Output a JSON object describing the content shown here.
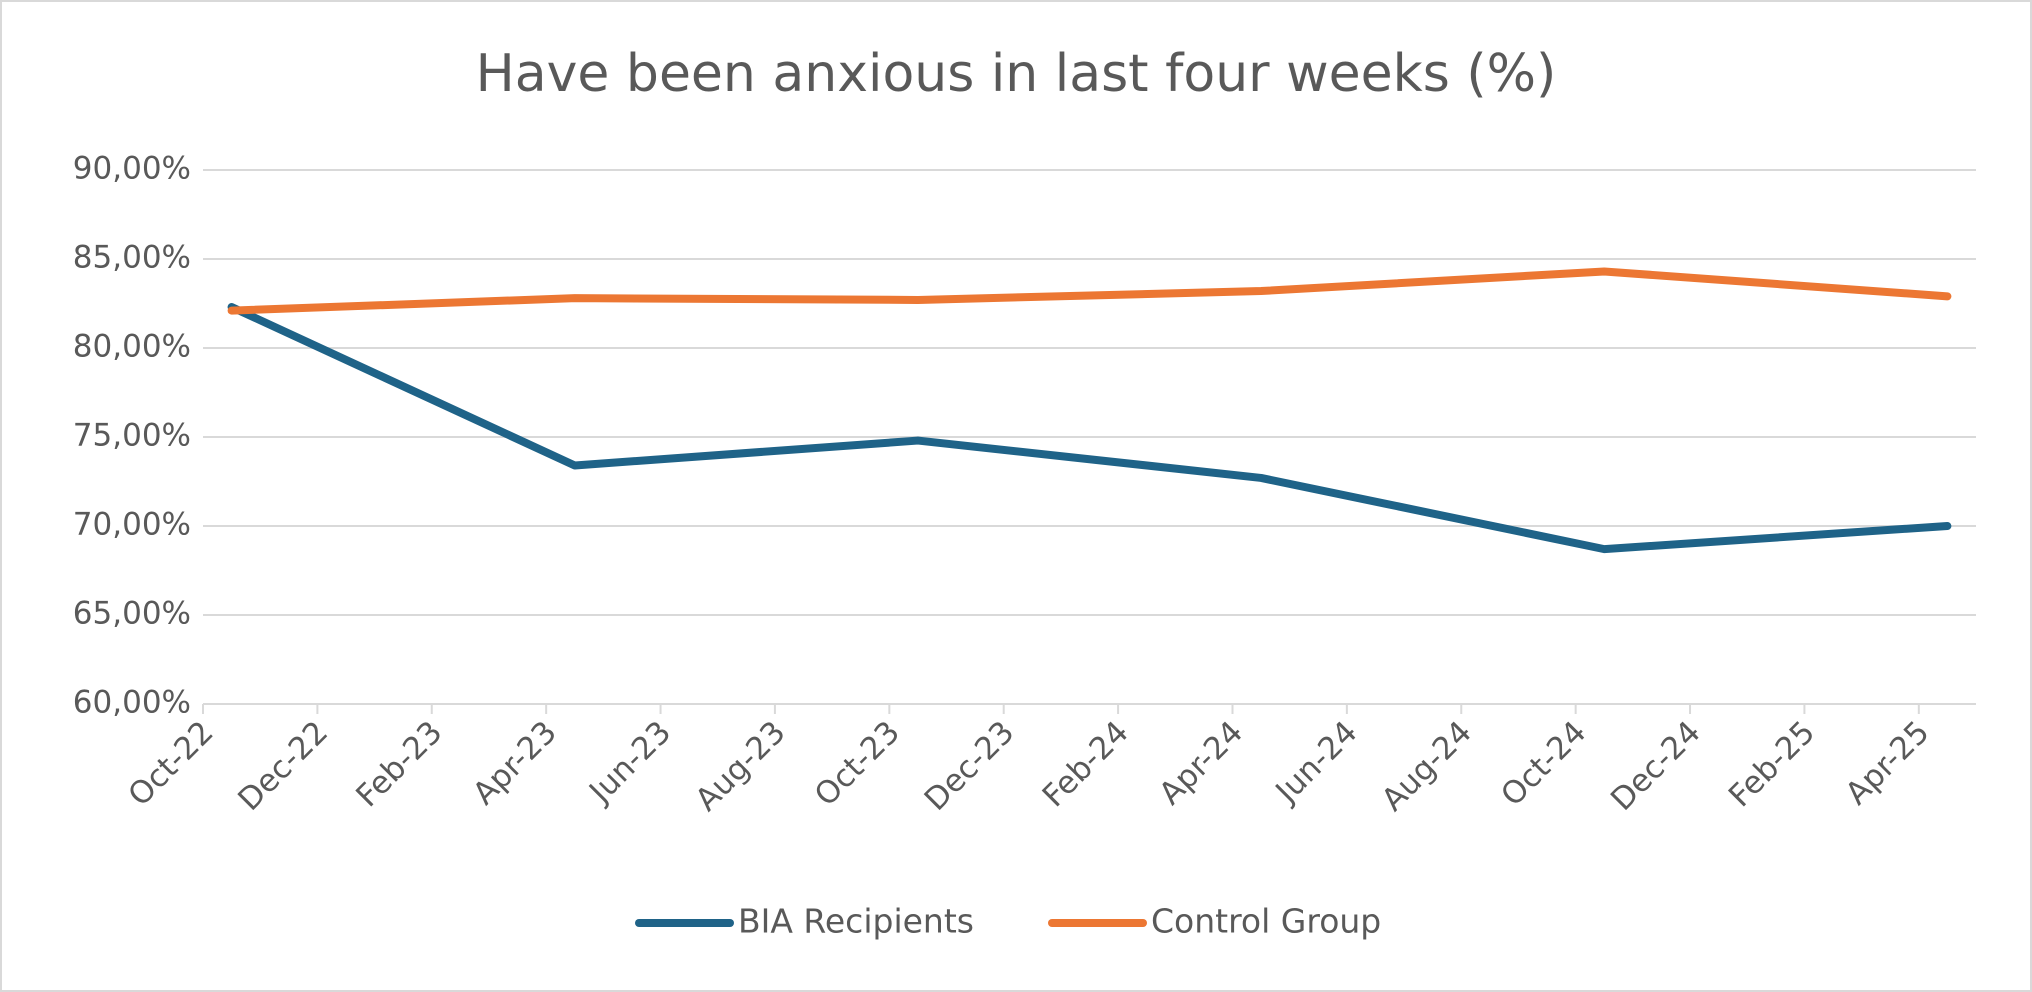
{
  "chart_data": {
    "type": "line",
    "title": "Have been anxious in last four weeks (%)",
    "x": [
      "2022-10",
      "2023-04",
      "2023-10",
      "2024-04",
      "2024-10",
      "2025-04"
    ],
    "series": [
      {
        "name": "BIA Recipients",
        "color": "#1f6388",
        "values": [
          82.3,
          73.4,
          74.8,
          72.7,
          68.7,
          70.0
        ]
      },
      {
        "name": "Control Group",
        "color": "#ec7733",
        "values": [
          82.1,
          82.8,
          82.7,
          83.2,
          84.3,
          82.9
        ]
      }
    ],
    "xlim": [
      "2022-10",
      "2025-05"
    ],
    "xticks": [
      {
        "value": "2022-10",
        "label": "Oct-22"
      },
      {
        "value": "2022-12",
        "label": "Dec-22"
      },
      {
        "value": "2023-02",
        "label": "Feb-23"
      },
      {
        "value": "2023-04",
        "label": "Apr-23"
      },
      {
        "value": "2023-06",
        "label": "Jun-23"
      },
      {
        "value": "2023-08",
        "label": "Aug-23"
      },
      {
        "value": "2023-10",
        "label": "Oct-23"
      },
      {
        "value": "2023-12",
        "label": "Dec-23"
      },
      {
        "value": "2024-02",
        "label": "Feb-24"
      },
      {
        "value": "2024-04",
        "label": "Apr-24"
      },
      {
        "value": "2024-06",
        "label": "Jun-24"
      },
      {
        "value": "2024-08",
        "label": "Aug-24"
      },
      {
        "value": "2024-10",
        "label": "Oct-24"
      },
      {
        "value": "2024-12",
        "label": "Dec-24"
      },
      {
        "value": "2025-02",
        "label": "Feb-25"
      },
      {
        "value": "2025-04",
        "label": "Apr-25"
      }
    ],
    "ylim": [
      60,
      90
    ],
    "yticks": [
      {
        "value": 60,
        "label": "60,00%"
      },
      {
        "value": 65,
        "label": "65,00%"
      },
      {
        "value": 70,
        "label": "70,00%"
      },
      {
        "value": 75,
        "label": "75,00%"
      },
      {
        "value": 80,
        "label": "80,00%"
      },
      {
        "value": 85,
        "label": "85,00%"
      },
      {
        "value": 90,
        "label": "90,00%"
      }
    ],
    "grid": true,
    "legend": "bottom"
  }
}
